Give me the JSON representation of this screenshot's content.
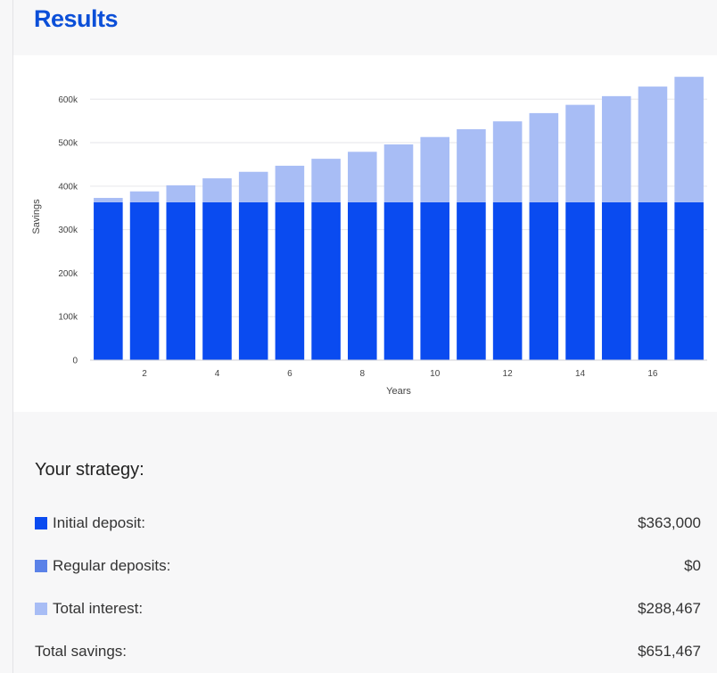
{
  "header": {
    "title": "Results"
  },
  "chart_data": {
    "type": "bar",
    "stacked": true,
    "xlabel": "Years",
    "ylabel": "Savings",
    "x": [
      1,
      2,
      3,
      4,
      5,
      6,
      7,
      8,
      9,
      10,
      11,
      12,
      13,
      14,
      15,
      16,
      17
    ],
    "x_ticks": [
      "2",
      "4",
      "6",
      "8",
      "10",
      "12",
      "14",
      "16"
    ],
    "y_ticks": [
      "0",
      "100k",
      "200k",
      "300k",
      "400k",
      "500k",
      "600k"
    ],
    "ylim": [
      0,
      660000
    ],
    "grid": true,
    "series": [
      {
        "name": "Initial deposit",
        "color": "#0a4bf0",
        "values": [
          363000,
          363000,
          363000,
          363000,
          363000,
          363000,
          363000,
          363000,
          363000,
          363000,
          363000,
          363000,
          363000,
          363000,
          363000,
          363000,
          363000
        ]
      },
      {
        "name": "Regular deposits",
        "color": "#5b82e8",
        "values": [
          0,
          0,
          0,
          0,
          0,
          0,
          0,
          0,
          0,
          0,
          0,
          0,
          0,
          0,
          0,
          0,
          0
        ]
      },
      {
        "name": "Total interest",
        "color": "#a8bdf5",
        "values": [
          10000,
          25000,
          39000,
          55000,
          70000,
          84000,
          100000,
          116000,
          133000,
          150000,
          168000,
          186000,
          205000,
          224000,
          244000,
          266000,
          288467
        ]
      }
    ]
  },
  "strategy": {
    "title": "Your strategy:",
    "rows": [
      {
        "label": "Initial deposit:",
        "value": "$363,000",
        "color": "#0a4bf0"
      },
      {
        "label": "Regular deposits:",
        "value": "$0",
        "color": "#5b82e8"
      },
      {
        "label": "Total interest:",
        "value": "$288,467",
        "color": "#a8bdf5"
      }
    ],
    "total": {
      "label": "Total savings:",
      "value": "$651,467"
    }
  }
}
